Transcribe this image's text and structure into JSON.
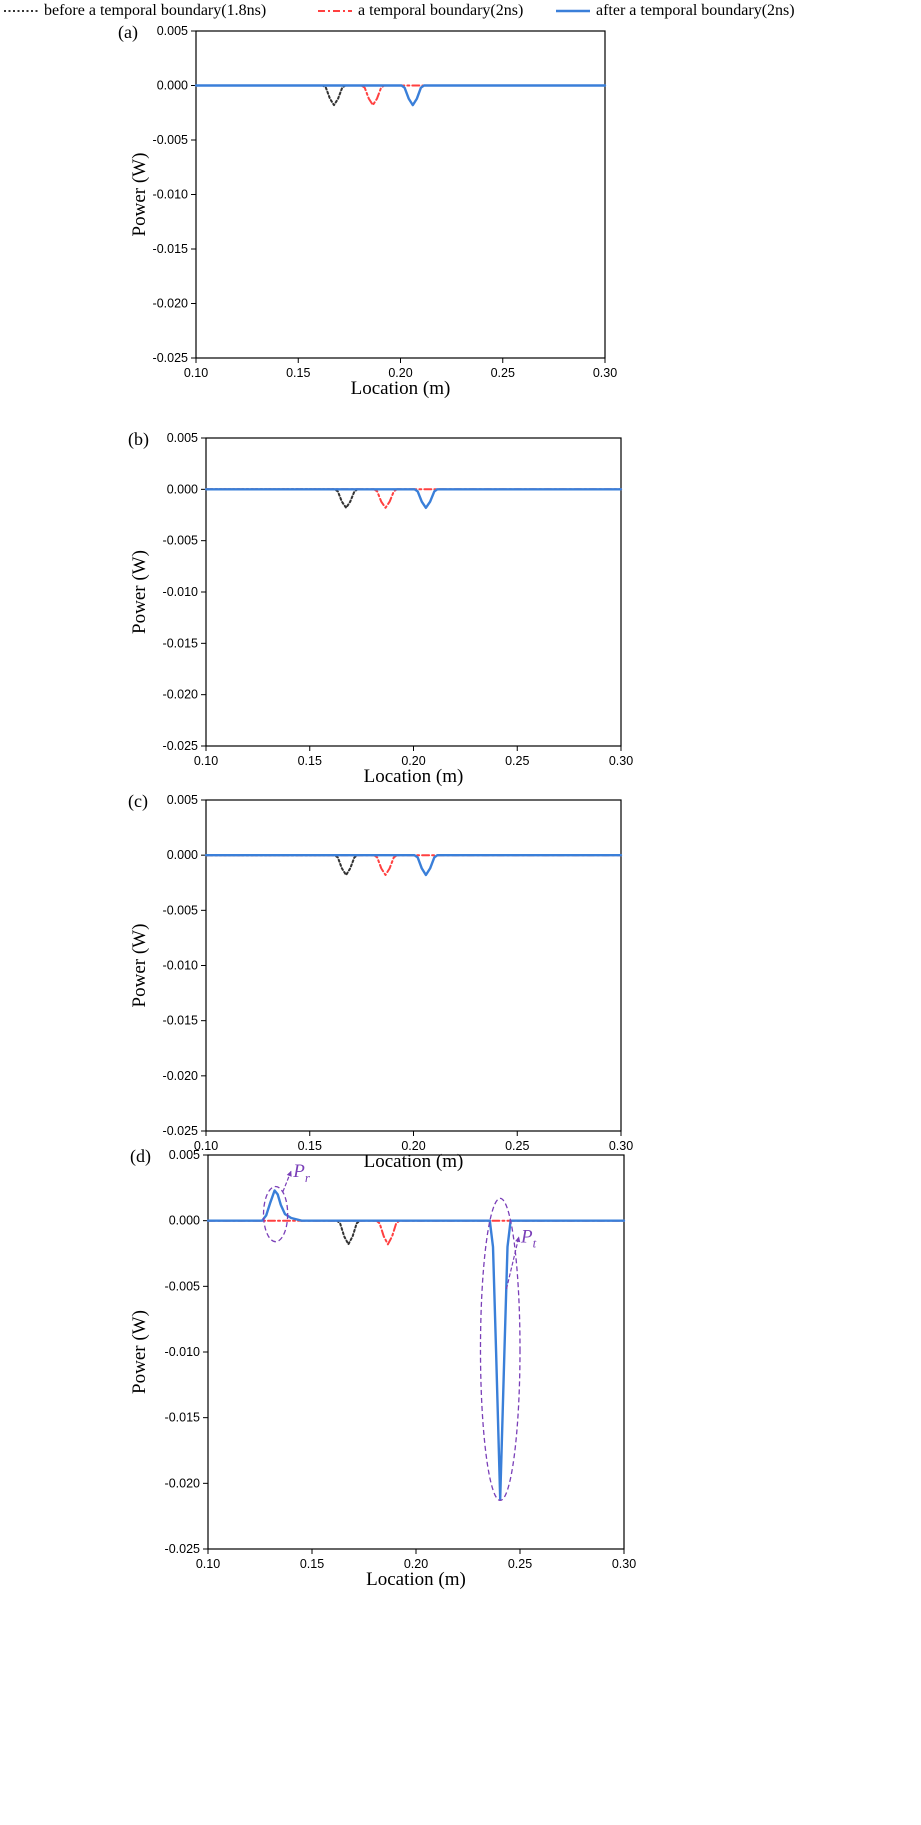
{
  "legend": [
    {
      "label": "before a temporal boundary(1.8ns)",
      "color": "#333333",
      "dash": "dotted"
    },
    {
      "label": "a temporal boundary(2ns)",
      "color": "#ff4040",
      "dash": "dashdot"
    },
    {
      "label": "after a temporal boundary(2ns)",
      "color": "#3a7fd9",
      "dash": "solid"
    }
  ],
  "chart_data": [
    {
      "type": "line",
      "panel_label": "(a)",
      "xlabel": "Location  (m)",
      "ylabel": "Power  (W)",
      "xlim": [
        0.1,
        0.3
      ],
      "ylim": [
        -0.025,
        0.005
      ],
      "xticks": [
        "0.10",
        "0.15",
        "0.20",
        "0.25",
        "0.30"
      ],
      "yticks": [
        "0.005",
        "0.000",
        "-0.005",
        "-0.010",
        "-0.015",
        "-0.020",
        "-0.025"
      ],
      "series": [
        {
          "name": "before a temporal boundary(1.8ns)",
          "color": "#333333",
          "dash": "dotted",
          "points": [
            [
              0.1,
              0
            ],
            [
              0.162,
              0
            ],
            [
              0.1635,
              -0.0002
            ],
            [
              0.1655,
              -0.0012
            ],
            [
              0.1675,
              -0.0018
            ],
            [
              0.1695,
              -0.0012
            ],
            [
              0.1715,
              -0.0002
            ],
            [
              0.173,
              0
            ]
          ]
        },
        {
          "name": "a temporal boundary(2ns)",
          "color": "#ff4040",
          "dash": "dashdot",
          "points": [
            [
              0.1,
              0
            ],
            [
              0.181,
              0
            ],
            [
              0.1825,
              -0.0002
            ],
            [
              0.1845,
              -0.0012
            ],
            [
              0.1865,
              -0.0018
            ],
            [
              0.1885,
              -0.0012
            ],
            [
              0.1905,
              -0.0002
            ],
            [
              0.192,
              0
            ],
            [
              0.3,
              0
            ]
          ]
        },
        {
          "name": "after a temporal boundary(2ns)",
          "color": "#3a7fd9",
          "dash": "solid",
          "points": [
            [
              0.1,
              0
            ],
            [
              0.2005,
              0
            ],
            [
              0.202,
              -0.0002
            ],
            [
              0.204,
              -0.0012
            ],
            [
              0.206,
              -0.0018
            ],
            [
              0.208,
              -0.0012
            ],
            [
              0.21,
              -0.0002
            ],
            [
              0.2115,
              0
            ],
            [
              0.3,
              0
            ]
          ]
        }
      ],
      "annotations": []
    },
    {
      "type": "line",
      "panel_label": "(b)",
      "xlabel": "Location  (m)",
      "ylabel": "Power  (W)",
      "xlim": [
        0.1,
        0.3
      ],
      "ylim": [
        -0.025,
        0.005
      ],
      "xticks": [
        "0.10",
        "0.15",
        "0.20",
        "0.25",
        "0.30"
      ],
      "yticks": [
        "0.005",
        "0.000",
        "-0.005",
        "-0.010",
        "-0.015",
        "-0.020",
        "-0.025"
      ],
      "series": [
        {
          "name": "before a temporal boundary(1.8ns)",
          "color": "#333333",
          "dash": "dotted",
          "points": [
            [
              0.1,
              0
            ],
            [
              0.162,
              0
            ],
            [
              0.1635,
              -0.0002
            ],
            [
              0.1655,
              -0.0012
            ],
            [
              0.1675,
              -0.0018
            ],
            [
              0.1695,
              -0.0012
            ],
            [
              0.1715,
              -0.0002
            ],
            [
              0.173,
              0
            ]
          ]
        },
        {
          "name": "a temporal boundary(2ns)",
          "color": "#ff4040",
          "dash": "dashdot",
          "points": [
            [
              0.1,
              0
            ],
            [
              0.181,
              0
            ],
            [
              0.1825,
              -0.0002
            ],
            [
              0.1845,
              -0.0012
            ],
            [
              0.1865,
              -0.0018
            ],
            [
              0.1885,
              -0.0012
            ],
            [
              0.1905,
              -0.0002
            ],
            [
              0.192,
              0
            ],
            [
              0.3,
              0
            ]
          ]
        },
        {
          "name": "after a temporal boundary(2ns)",
          "color": "#3a7fd9",
          "dash": "solid",
          "points": [
            [
              0.1,
              0
            ],
            [
              0.2005,
              0
            ],
            [
              0.202,
              -0.0002
            ],
            [
              0.204,
              -0.0012
            ],
            [
              0.206,
              -0.0018
            ],
            [
              0.208,
              -0.0012
            ],
            [
              0.21,
              -0.0002
            ],
            [
              0.2115,
              0
            ],
            [
              0.3,
              0
            ]
          ]
        }
      ],
      "annotations": []
    },
    {
      "type": "line",
      "panel_label": "(c)",
      "xlabel": "Location  (m)",
      "ylabel": "Power  (W)",
      "xlim": [
        0.1,
        0.3
      ],
      "ylim": [
        -0.025,
        0.005
      ],
      "xticks": [
        "0.10",
        "0.15",
        "0.20",
        "0.25",
        "0.30"
      ],
      "yticks": [
        "0.005",
        "0.000",
        "-0.005",
        "-0.010",
        "-0.015",
        "-0.020",
        "-0.025"
      ],
      "series": [
        {
          "name": "before a temporal boundary(1.8ns)",
          "color": "#333333",
          "dash": "dotted",
          "points": [
            [
              0.1,
              0
            ],
            [
              0.162,
              0
            ],
            [
              0.1635,
              -0.0002
            ],
            [
              0.1655,
              -0.0012
            ],
            [
              0.1675,
              -0.0018
            ],
            [
              0.1695,
              -0.0012
            ],
            [
              0.1715,
              -0.0002
            ],
            [
              0.173,
              0
            ]
          ]
        },
        {
          "name": "a temporal boundary(2ns)",
          "color": "#ff4040",
          "dash": "dashdot",
          "points": [
            [
              0.1,
              0
            ],
            [
              0.181,
              0
            ],
            [
              0.1825,
              -0.0002
            ],
            [
              0.1845,
              -0.0012
            ],
            [
              0.1865,
              -0.0018
            ],
            [
              0.1885,
              -0.0012
            ],
            [
              0.1905,
              -0.0002
            ],
            [
              0.192,
              0
            ],
            [
              0.3,
              0
            ]
          ]
        },
        {
          "name": "after a temporal boundary(2ns)",
          "color": "#3a7fd9",
          "dash": "solid",
          "points": [
            [
              0.1,
              0
            ],
            [
              0.2005,
              0
            ],
            [
              0.202,
              -0.0002
            ],
            [
              0.204,
              -0.0012
            ],
            [
              0.206,
              -0.0018
            ],
            [
              0.208,
              -0.0012
            ],
            [
              0.21,
              -0.0002
            ],
            [
              0.2115,
              0
            ],
            [
              0.3,
              0
            ]
          ]
        }
      ],
      "annotations": []
    },
    {
      "type": "line",
      "panel_label": "(d)",
      "xlabel": "Location  (m)",
      "ylabel": "Power  (W)",
      "xlim": [
        0.1,
        0.3
      ],
      "ylim": [
        -0.025,
        0.005
      ],
      "xticks": [
        "0.10",
        "0.15",
        "0.20",
        "0.25",
        "0.30"
      ],
      "yticks": [
        "0.005",
        "0.000",
        "-0.005",
        "-0.010",
        "-0.015",
        "-0.020",
        "-0.025"
      ],
      "series": [
        {
          "name": "before a temporal boundary(1.8ns)",
          "color": "#333333",
          "dash": "dotted",
          "points": [
            [
              0.162,
              0
            ],
            [
              0.1635,
              -0.0002
            ],
            [
              0.1655,
              -0.0012
            ],
            [
              0.1675,
              -0.0018
            ],
            [
              0.1695,
              -0.0012
            ],
            [
              0.1715,
              -0.0002
            ],
            [
              0.173,
              0
            ]
          ]
        },
        {
          "name": "a temporal boundary(2ns)",
          "color": "#ff4040",
          "dash": "dashdot",
          "points": [
            [
              0.1,
              0
            ],
            [
              0.181,
              0
            ],
            [
              0.1825,
              -0.0002
            ],
            [
              0.1845,
              -0.0012
            ],
            [
              0.1865,
              -0.0018
            ],
            [
              0.1885,
              -0.0012
            ],
            [
              0.1905,
              -0.0002
            ],
            [
              0.192,
              0
            ],
            [
              0.3,
              0
            ]
          ]
        },
        {
          "name": "after a temporal boundary(2ns)",
          "color": "#3a7fd9",
          "dash": "solid",
          "points": [
            [
              0.1,
              0
            ],
            [
              0.126,
              0
            ],
            [
              0.128,
              0.0004
            ],
            [
              0.13,
              0.0014
            ],
            [
              0.132,
              0.0023
            ],
            [
              0.1335,
              0.002
            ],
            [
              0.135,
              0.0012
            ],
            [
              0.137,
              0.0005
            ],
            [
              0.14,
              0.0002
            ],
            [
              0.145,
              0
            ],
            [
              0.2355,
              0
            ],
            [
              0.237,
              -0.002
            ],
            [
              0.2385,
              -0.01
            ],
            [
              0.2405,
              -0.0212
            ],
            [
              0.2425,
              -0.01
            ],
            [
              0.244,
              -0.002
            ],
            [
              0.2455,
              0
            ],
            [
              0.3,
              0
            ]
          ]
        }
      ],
      "annotations": [
        {
          "label": "P",
          "sub": "r",
          "color": "#7a3fb8",
          "ellipse": {
            "cx": 0.1325,
            "cy": 0.0005,
            "rx": 0.0058,
            "ry": 0.0021
          },
          "arrow_from": [
            0.136,
            0.0022
          ],
          "arrow_to": [
            0.14,
            0.0038
          ],
          "text_at": [
            0.141,
            0.0038
          ]
        },
        {
          "label": "P",
          "sub": "t",
          "color": "#7a3fb8",
          "ellipse": {
            "cx": 0.2405,
            "cy": -0.0098,
            "rx": 0.0095,
            "ry": 0.0115
          },
          "arrow_from": [
            0.2435,
            -0.0052
          ],
          "arrow_to": [
            0.2495,
            -0.0012
          ],
          "text_at": [
            0.2505,
            -0.0012
          ]
        }
      ]
    }
  ]
}
